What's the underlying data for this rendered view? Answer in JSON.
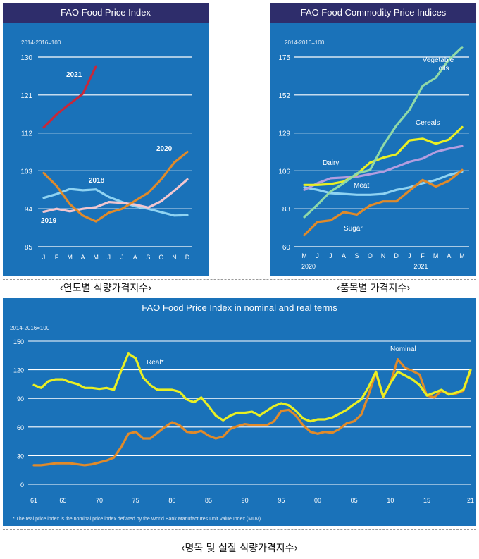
{
  "captions": {
    "yearly": "‹연도별 식량가격지수›",
    "commodity": "‹품목별 가격지수›",
    "nominal_real": "‹명목 및 실질 식량가격지수›"
  },
  "colors": {
    "panel_bg": "#1a72b9",
    "header_bg": "#2e2d6b",
    "grid": "#ffffff",
    "y2021": "#c7283a",
    "y2020": "#e08a2a",
    "y2018": "#8fd3f2",
    "y2019": "#f2c6cf",
    "vegetable_oils": "#8fd9a8",
    "cereals": "#e9ef23",
    "dairy": "#b39de0",
    "meat": "#8fd3f2",
    "sugar": "#e08a2a",
    "real": "#e9ef23",
    "nominal": "#e08a2a"
  },
  "chart_data": [
    {
      "type": "line",
      "title": "FAO Food Price Index",
      "subtitle": "2014-2016=100",
      "categories": [
        "J",
        "F",
        "M",
        "A",
        "M",
        "J",
        "J",
        "A",
        "S",
        "O",
        "N",
        "D"
      ],
      "yticks": [
        85,
        94,
        103,
        112,
        121,
        130
      ],
      "ylim": [
        85,
        130
      ],
      "grid": true,
      "series": [
        {
          "name": "2021",
          "values": [
            113.3,
            116.4,
            118.9,
            121.3,
            127.8,
            null,
            null,
            null,
            null,
            null,
            null,
            null
          ]
        },
        {
          "name": "2020",
          "values": [
            102.5,
            99.4,
            95.1,
            92.4,
            91.0,
            93.1,
            94.0,
            95.9,
            97.8,
            101.0,
            105.0,
            107.5
          ]
        },
        {
          "name": "2018",
          "values": [
            96.6,
            97.5,
            98.7,
            98.4,
            98.6,
            96.8,
            95.6,
            94.6,
            94.0,
            93.2,
            92.4,
            92.5
          ]
        },
        {
          "name": "2019",
          "values": [
            93.3,
            94.0,
            93.4,
            94.0,
            94.4,
            95.6,
            95.4,
            95.0,
            94.3,
            95.8,
            98.3,
            101.0
          ]
        }
      ]
    },
    {
      "type": "line",
      "title": "FAO Food Commodity Price Indices",
      "subtitle": "2014-2016=100",
      "categories": [
        "M",
        "J",
        "J",
        "A",
        "S",
        "O",
        "N",
        "D",
        "J",
        "F",
        "M",
        "A",
        "M"
      ],
      "year_labels": [
        "2020",
        "2021"
      ],
      "yticks": [
        60,
        83,
        106,
        129,
        152,
        175
      ],
      "ylim": [
        60,
        175
      ],
      "grid": true,
      "series": [
        {
          "name": "Vegetable oils",
          "values": [
            78.0,
            85.5,
            93.5,
            98.5,
            104.5,
            106.5,
            121.5,
            133.5,
            143.0,
            157.5,
            162.5,
            173.5,
            181.0
          ]
        },
        {
          "name": "Cereals",
          "values": [
            97.5,
            97.5,
            98.0,
            99.5,
            104.0,
            111.0,
            114.0,
            116.0,
            124.5,
            125.5,
            122.5,
            125.0,
            132.5
          ]
        },
        {
          "name": "Dairy",
          "values": [
            94.5,
            98.5,
            101.5,
            102.0,
            102.5,
            104.0,
            105.5,
            108.5,
            111.5,
            113.5,
            117.5,
            119.5,
            121.0
          ]
        },
        {
          "name": "Meat",
          "values": [
            96.0,
            94.5,
            92.5,
            92.0,
            91.5,
            91.5,
            92.0,
            94.5,
            96.0,
            98.5,
            100.5,
            103.5,
            105.5
          ]
        },
        {
          "name": "Sugar",
          "values": [
            67.0,
            75.0,
            76.0,
            81.0,
            79.5,
            85.0,
            87.5,
            87.5,
            94.0,
            100.5,
            96.5,
            100.0,
            106.5
          ]
        }
      ]
    },
    {
      "type": "line",
      "title": "FAO Food Price Index in nominal and real terms",
      "subtitle": "2014-2016=100",
      "x": [
        1961,
        1962,
        1963,
        1964,
        1965,
        1966,
        1967,
        1968,
        1969,
        1970,
        1971,
        1972,
        1973,
        1974,
        1975,
        1976,
        1977,
        1978,
        1979,
        1980,
        1981,
        1982,
        1983,
        1984,
        1985,
        1986,
        1987,
        1988,
        1989,
        1990,
        1991,
        1992,
        1993,
        1994,
        1995,
        1996,
        1997,
        1998,
        1999,
        2000,
        2001,
        2002,
        2003,
        2004,
        2005,
        2006,
        2007,
        2008,
        2009,
        2010,
        2011,
        2012,
        2013,
        2014,
        2015,
        2016,
        2017,
        2018,
        2019,
        2020,
        2021
      ],
      "xticks": [
        "61",
        "65",
        "70",
        "75",
        "80",
        "85",
        "90",
        "95",
        "00",
        "05",
        "10",
        "15",
        "21"
      ],
      "xtick_years": [
        1961,
        1965,
        1970,
        1975,
        1980,
        1985,
        1990,
        1995,
        2000,
        2005,
        2010,
        2015,
        2021
      ],
      "yticks": [
        0,
        30,
        60,
        90,
        120,
        150
      ],
      "ylim": [
        0,
        150
      ],
      "xlim": [
        1961,
        2021
      ],
      "grid": true,
      "footnote": "* The real price index is the nominal price index deflated by the World Bank Manufactures Unit Value Index (MUV)",
      "series": [
        {
          "name": "Real*",
          "values": [
            104,
            101,
            108,
            110,
            110,
            107,
            105,
            101,
            101,
            100,
            101,
            99,
            119,
            137,
            132,
            112,
            104,
            99,
            99,
            99,
            97,
            89,
            86,
            91,
            82,
            72,
            67,
            72,
            75,
            75,
            76,
            72,
            77,
            82,
            85,
            83,
            77,
            69,
            66,
            68,
            68,
            70,
            74,
            78,
            84,
            89,
            102,
            118,
            92,
            106,
            118,
            114,
            110,
            104,
            93,
            96,
            99,
            94,
            96,
            99,
            120
          ]
        },
        {
          "name": "Nominal",
          "values": [
            20,
            20,
            21,
            22,
            22,
            22,
            21,
            20,
            21,
            23,
            25,
            28,
            39,
            53,
            55,
            48,
            48,
            54,
            60,
            65,
            62,
            55,
            54,
            56,
            51,
            48,
            50,
            58,
            61,
            63,
            62,
            62,
            62,
            66,
            77,
            78,
            72,
            62,
            55,
            53,
            55,
            54,
            58,
            64,
            66,
            73,
            94,
            117,
            91,
            106,
            131,
            122,
            119,
            115,
            93,
            91,
            98,
            95,
            95,
            98,
            119
          ]
        }
      ]
    }
  ]
}
